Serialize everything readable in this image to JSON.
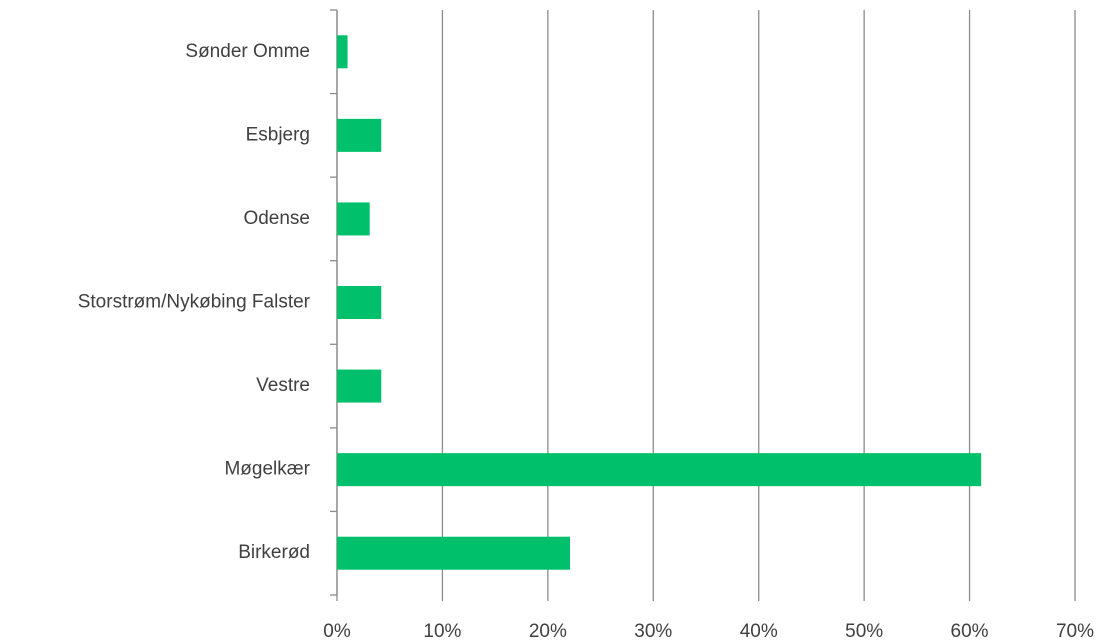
{
  "chart_data": {
    "type": "barh",
    "categories": [
      "Sønder Omme",
      "Esbjerg",
      "Odense",
      "Storstrøm/Nykøbing Falster",
      "Vestre",
      "Møgelkær",
      "Birkerød"
    ],
    "values": [
      1.0,
      4.2,
      3.1,
      4.2,
      4.2,
      61.1,
      22.1
    ],
    "color": "#00c06b",
    "xlim": [
      0,
      70
    ],
    "xticks": [
      {
        "value": 0,
        "label": "0%"
      },
      {
        "value": 10,
        "label": "10%"
      },
      {
        "value": 20,
        "label": "20%"
      },
      {
        "value": 30,
        "label": "30%"
      },
      {
        "value": 40,
        "label": "40%"
      },
      {
        "value": 50,
        "label": "50%"
      },
      {
        "value": 60,
        "label": "60%"
      },
      {
        "value": 70,
        "label": "70%"
      }
    ],
    "grid": true
  }
}
